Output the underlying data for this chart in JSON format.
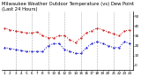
{
  "title": "Milwaukee Weather Outdoor Temperature (vs) Dew Point (Last 24 Hours)",
  "temp_color": "#cc0000",
  "dew_color": "#0000cc",
  "grid_color": "#aaaaaa",
  "bg_color": "#ffffff",
  "temp_values": [
    38,
    36,
    35,
    34,
    33,
    33,
    34,
    30,
    28,
    28,
    30,
    30,
    26,
    23,
    28,
    33,
    35,
    38,
    36,
    34,
    32,
    30,
    35,
    36
  ],
  "dew_values": [
    18,
    17,
    16,
    15,
    14,
    14,
    14,
    14,
    20,
    22,
    22,
    16,
    14,
    12,
    12,
    18,
    22,
    24,
    22,
    20,
    18,
    18,
    24,
    22
  ],
  "xlabels": [
    "1",
    "2",
    "3",
    "4",
    "5",
    "6",
    "7",
    "8",
    "9",
    "10",
    "11",
    "12",
    "13",
    "14",
    "15",
    "16",
    "17",
    "18",
    "19",
    "20",
    "21",
    "22",
    "23",
    "24"
  ],
  "ylim": [
    -5,
    55
  ],
  "yticks": [
    0,
    10,
    20,
    30,
    40,
    50
  ],
  "ytick_labels": [
    "0",
    "10",
    "20",
    "30",
    "40",
    "50"
  ],
  "title_fontsize": 3.8,
  "tick_fontsize": 3.0,
  "linewidth": 0.7,
  "markersize": 1.0,
  "vline_positions": [
    2,
    5,
    8,
    11,
    14,
    17,
    20,
    23
  ]
}
